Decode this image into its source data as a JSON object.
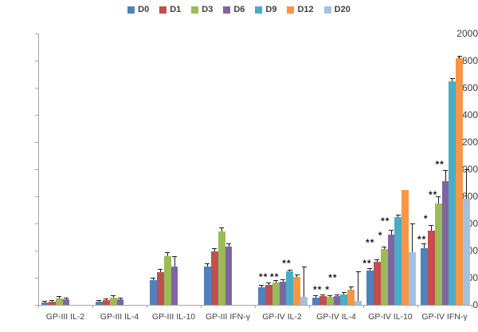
{
  "chart_data": {
    "type": "bar",
    "title": "",
    "xlabel": "",
    "ylabel": "",
    "ylim": [
      0,
      2000
    ],
    "yticks": [
      0,
      200,
      400,
      600,
      800,
      1000,
      1200,
      1400,
      1600,
      1800,
      2000
    ],
    "grid": false,
    "legend_position": "top",
    "categories": [
      "GP-III IL-2",
      "GP-III IL-4",
      "GP-III IL-10",
      "GP-III IFN-γ",
      "GP-IV IL-2",
      "GP-IV IL-4",
      "GP-IV IL-10",
      "GP-IV IFN-γ"
    ],
    "series": [
      {
        "name": "D0",
        "color": "#4F81BD",
        "values": [
          18,
          25,
          180,
          285,
          130,
          55,
          255,
          420
        ],
        "errors": [
          5,
          6,
          16,
          17,
          14,
          8,
          12,
          28
        ]
      },
      {
        "name": "D1",
        "color": "#C0504D",
        "values": [
          25,
          35,
          240,
          392,
          148,
          62,
          315,
          548
        ],
        "errors": [
          6,
          7,
          18,
          18,
          12,
          8,
          14,
          35
        ]
      },
      {
        "name": "D3",
        "color": "#9BBB59",
        "values": [
          50,
          55,
          360,
          540,
          165,
          58,
          410,
          745
        ],
        "errors": [
          8,
          8,
          20,
          22,
          12,
          8,
          14,
          48
        ]
      },
      {
        "name": "D6",
        "color": "#8064A2",
        "values": [
          40,
          42,
          285,
          430,
          170,
          62,
          520,
          910
        ],
        "errors": [
          7,
          7,
          70,
          18,
          14,
          8,
          28,
          80
        ]
      },
      {
        "name": "D9",
        "color": "#4BACC6",
        "values": [
          0,
          0,
          0,
          0,
          245,
          78,
          645,
          1650
        ],
        "errors": [
          0,
          0,
          0,
          0,
          10,
          8,
          12,
          15
        ]
      },
      {
        "name": "D12",
        "color": "#F79646",
        "values": [
          0,
          0,
          0,
          0,
          205,
          110,
          850,
          1820
        ],
        "errors": [
          0,
          0,
          0,
          0,
          12,
          20,
          0,
          10
        ]
      },
      {
        "name": "D20",
        "color": "#A6C1DF",
        "values": [
          0,
          0,
          0,
          0,
          60,
          30,
          390,
          785
        ],
        "errors": [
          0,
          0,
          0,
          0,
          215,
          210,
          205,
          210
        ]
      }
    ],
    "annotations": [
      {
        "category": 4,
        "slot": 0.76,
        "text": "**",
        "y": 180
      },
      {
        "category": 4,
        "slot": 2.34,
        "text": "**",
        "y": 180
      },
      {
        "category": 4,
        "slot": 4.06,
        "text": "**",
        "y": 280
      },
      {
        "category": 5,
        "slot": 0.76,
        "text": "**",
        "y": 90
      },
      {
        "category": 5,
        "slot": 2.17,
        "text": "*",
        "y": 90
      },
      {
        "category": 5,
        "slot": 2.93,
        "text": "**",
        "y": 175
      },
      {
        "category": 6,
        "slot": 0.1,
        "text": "**",
        "y": 282
      },
      {
        "category": 6,
        "slot": 0.53,
        "text": "**",
        "y": 435
      },
      {
        "category": 6,
        "slot": 2.0,
        "text": "*",
        "y": 488
      },
      {
        "category": 6,
        "slot": 2.68,
        "text": "**",
        "y": 594
      },
      {
        "category": 7,
        "slot": 0.19,
        "text": "**",
        "y": 459
      },
      {
        "category": 7,
        "slot": 0.76,
        "text": "*",
        "y": 612
      },
      {
        "category": 7,
        "slot": 1.77,
        "text": "**",
        "y": 788
      },
      {
        "category": 7,
        "slot": 2.73,
        "text": "**",
        "y": 1012
      }
    ]
  }
}
